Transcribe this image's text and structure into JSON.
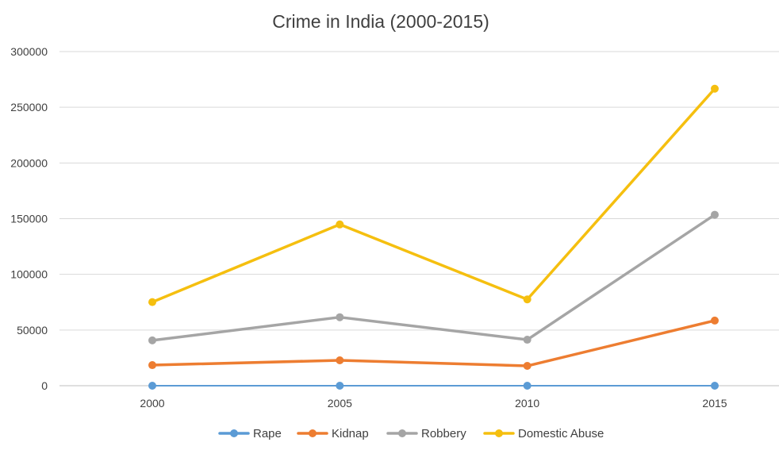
{
  "chart_data": {
    "type": "line",
    "title": "Crime in India (2000-2015)",
    "categories": [
      "2000",
      "2005",
      "2010",
      "2015"
    ],
    "ylim": [
      0,
      300000
    ],
    "yticks": [
      0,
      50000,
      100000,
      150000,
      200000,
      250000,
      300000
    ],
    "ytick_labels": [
      "0",
      "50000",
      "100000",
      "150000",
      "200000",
      "250000",
      "300000"
    ],
    "grid": "horizontal",
    "legend_position": "bottom",
    "series": [
      {
        "name": "Rape",
        "values": [
          0,
          0,
          0,
          0
        ],
        "color": "#5B9BD5"
      },
      {
        "name": "Kidnap",
        "values": [
          18500,
          22800,
          17800,
          58500
        ],
        "color": "#ED7D31"
      },
      {
        "name": "Robbery",
        "values": [
          40700,
          61500,
          41300,
          153500
        ],
        "color": "#A5A5A5"
      },
      {
        "name": "Domestic Abuse",
        "values": [
          75100,
          144800,
          77500,
          266700
        ],
        "color": "#F5BF0F"
      }
    ]
  }
}
